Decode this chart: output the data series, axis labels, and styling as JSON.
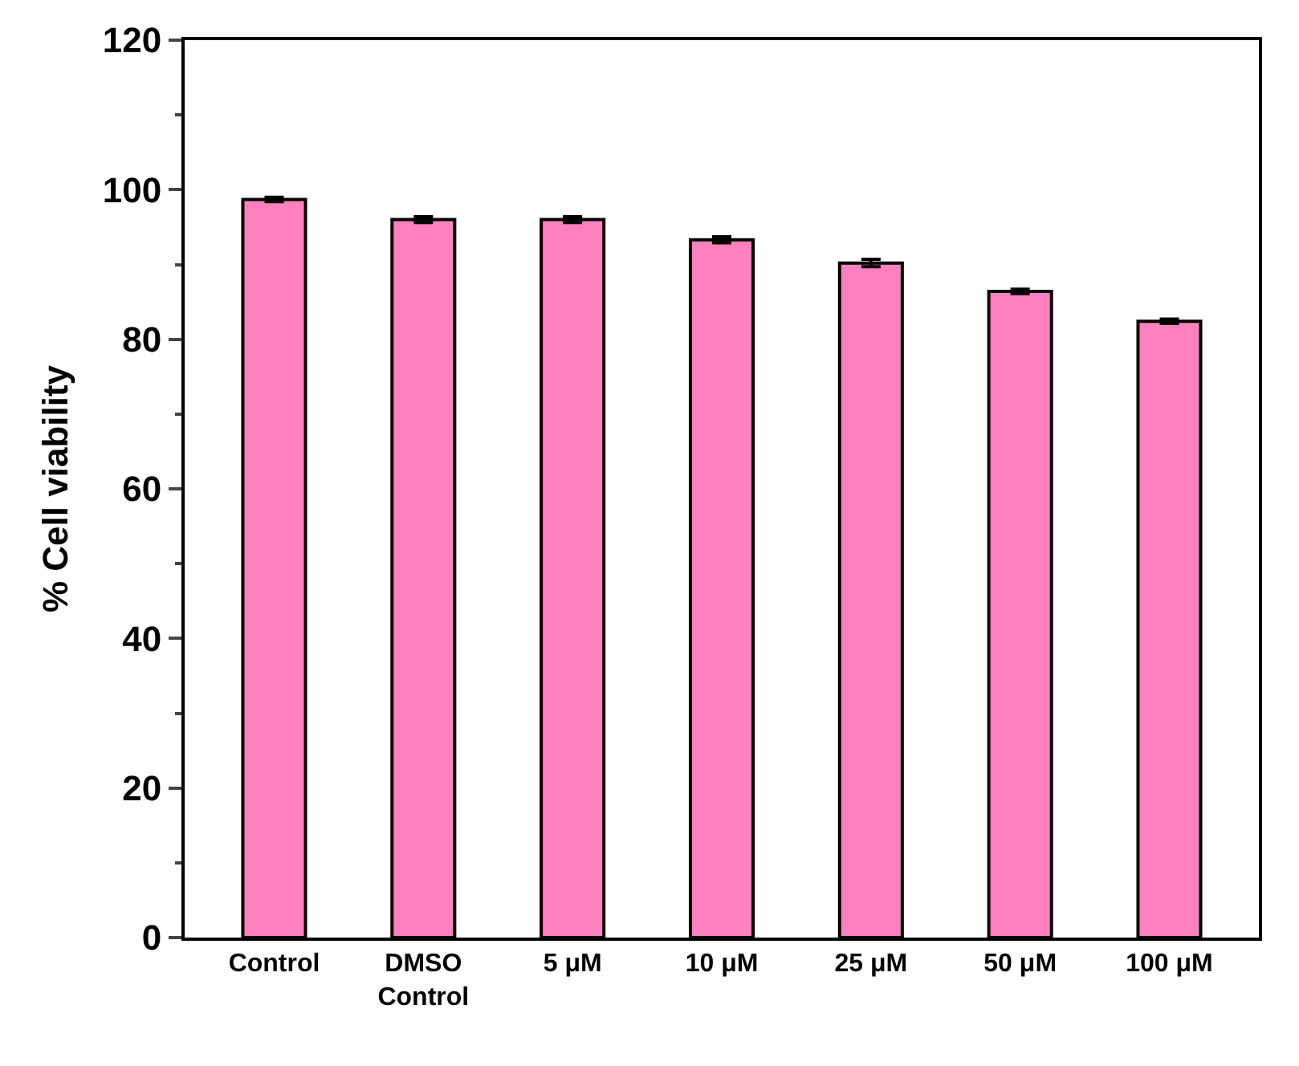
{
  "chart_data": {
    "type": "bar",
    "ylabel": "% Cell viability",
    "categories": [
      "Control",
      "DMSO\nControl",
      "5 μM",
      "10 μM",
      "25 μM",
      "50 μM",
      "100 μM"
    ],
    "values": [
      98.7,
      96.0,
      96.0,
      93.3,
      90.2,
      86.4,
      82.4
    ],
    "errors": [
      0.3,
      0.4,
      0.4,
      0.4,
      0.5,
      0.3,
      0.3
    ],
    "color": "#ff80bf",
    "ylim": [
      0,
      120
    ],
    "yticks": [
      0,
      20,
      40,
      60,
      80,
      100,
      120
    ]
  }
}
